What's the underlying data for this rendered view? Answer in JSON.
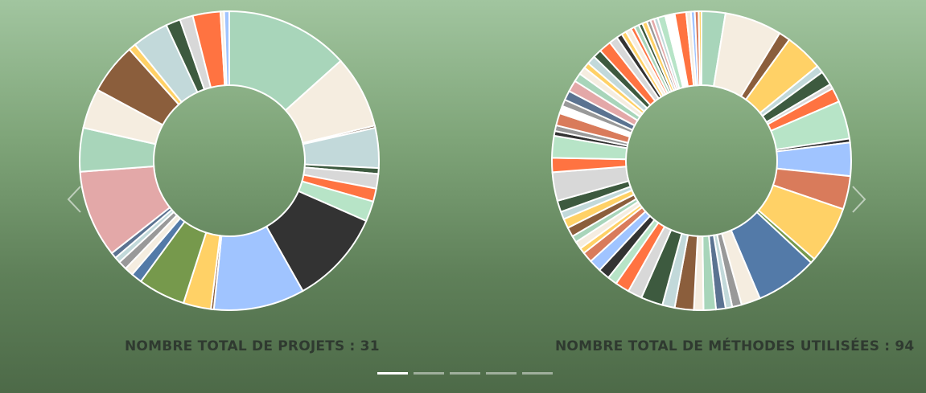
{
  "carousel": {
    "slides": [
      {
        "caption": "NOMBRE TOTAL DE PROJETS : 31",
        "segments": [
          {
            "v": 17,
            "c": "#a8d5ba"
          },
          {
            "v": 10,
            "c": "#f5ede0"
          },
          {
            "v": 0.3,
            "c": "#5a3a20"
          },
          {
            "v": 5.5,
            "c": "#c2d9da"
          },
          {
            "v": 0.8,
            "c": "#3d5a3f"
          },
          {
            "v": 2,
            "c": "#d8d8d8"
          },
          {
            "v": 1.8,
            "c": "#ff7341"
          },
          {
            "v": 2.8,
            "c": "#b7e4c7"
          },
          {
            "v": 13,
            "c": "#333333"
          },
          {
            "v": 12.5,
            "c": "#a0c4ff"
          },
          {
            "v": 0.4,
            "c": "#8b5e3c"
          },
          {
            "v": 3.8,
            "c": "#ffd166"
          },
          {
            "v": 6.5,
            "c": "#76994c"
          },
          {
            "v": 1.5,
            "c": "#537aa8"
          },
          {
            "v": 1.2,
            "c": "#f5ede0"
          },
          {
            "v": 1.2,
            "c": "#999999"
          },
          {
            "v": 0.8,
            "c": "#c2d9da"
          },
          {
            "v": 0.8,
            "c": "#5b7391"
          },
          {
            "v": 12,
            "c": "#e3a8a8"
          },
          {
            "v": 6,
            "c": "#a8d5ba"
          },
          {
            "v": 5.5,
            "c": "#f5ede0"
          },
          {
            "v": 7,
            "c": "#8b5e3c"
          },
          {
            "v": 1,
            "c": "#ffd166"
          },
          {
            "v": 5,
            "c": "#c2d9da"
          },
          {
            "v": 2,
            "c": "#3d5a3f"
          },
          {
            "v": 1.8,
            "c": "#d8d8d8"
          },
          {
            "v": 3.8,
            "c": "#ff7341"
          },
          {
            "v": 0.5,
            "c": "#f5ede0"
          },
          {
            "v": 0.7,
            "c": "#a0c4ff"
          }
        ]
      },
      {
        "caption": "NOMBRE TOTAL DE MÉTHODES UTILISÉES : 94",
        "segments": [
          {
            "v": 2.5,
            "c": "#a8d5ba"
          },
          {
            "v": 6,
            "c": "#f5ede0"
          },
          {
            "v": 1.2,
            "c": "#8b5e3c"
          },
          {
            "v": 4,
            "c": "#ffd166"
          },
          {
            "v": 0.8,
            "c": "#c2d9da"
          },
          {
            "v": 1.5,
            "c": "#3d5a3f"
          },
          {
            "v": 0.5,
            "c": "#d8d8d8"
          },
          {
            "v": 1.5,
            "c": "#ff7341"
          },
          {
            "v": 4,
            "c": "#b7e4c7"
          },
          {
            "v": 0.4,
            "c": "#333333"
          },
          {
            "v": 3.5,
            "c": "#a0c4ff"
          },
          {
            "v": 3.5,
            "c": "#d97b5b"
          },
          {
            "v": 6,
            "c": "#ffd166"
          },
          {
            "v": 0.5,
            "c": "#76994c"
          },
          {
            "v": 6.5,
            "c": "#537aa8"
          },
          {
            "v": 2,
            "c": "#f5ede0"
          },
          {
            "v": 1,
            "c": "#999999"
          },
          {
            "v": 0.7,
            "c": "#c2d9da"
          },
          {
            "v": 1,
            "c": "#5b7391"
          },
          {
            "v": 1.3,
            "c": "#a8d5ba"
          },
          {
            "v": 1,
            "c": "#f5ede0"
          },
          {
            "v": 2,
            "c": "#8b5e3c"
          },
          {
            "v": 1.3,
            "c": "#c2d9da"
          },
          {
            "v": 2.3,
            "c": "#3d5a3f"
          },
          {
            "v": 1.5,
            "c": "#d8d8d8"
          },
          {
            "v": 1.5,
            "c": "#ff7341"
          },
          {
            "v": 1,
            "c": "#b7e4c7"
          },
          {
            "v": 1.2,
            "c": "#333333"
          },
          {
            "v": 1.3,
            "c": "#a0c4ff"
          },
          {
            "v": 1.1,
            "c": "#d97b5b"
          },
          {
            "v": 0.6,
            "c": "#ffd166"
          },
          {
            "v": 0.8,
            "c": "#f5ede0"
          },
          {
            "v": 0.7,
            "c": "#a8d5ba"
          },
          {
            "v": 1,
            "c": "#8b5e3c"
          },
          {
            "v": 1,
            "c": "#ffd166"
          },
          {
            "v": 0.8,
            "c": "#c2d9da"
          },
          {
            "v": 1.2,
            "c": "#3d5a3f"
          },
          {
            "v": 3,
            "c": "#d8d8d8"
          },
          {
            "v": 1.5,
            "c": "#ff7341"
          },
          {
            "v": 2.3,
            "c": "#b7e4c7"
          },
          {
            "v": 0.5,
            "c": "#333333"
          },
          {
            "v": 0.6,
            "c": "#999999"
          },
          {
            "v": 1.3,
            "c": "#d97b5b"
          },
          {
            "v": 0.8,
            "c": "#ffffff"
          },
          {
            "v": 0.7,
            "c": "#999999"
          },
          {
            "v": 1,
            "c": "#5b7391"
          },
          {
            "v": 1.2,
            "c": "#e3a8a8"
          },
          {
            "v": 0.9,
            "c": "#a8d5ba"
          },
          {
            "v": 0.8,
            "c": "#f5ede0"
          },
          {
            "v": 0.6,
            "c": "#ffd166"
          },
          {
            "v": 0.9,
            "c": "#c2d9da"
          },
          {
            "v": 0.9,
            "c": "#3d5a3f"
          },
          {
            "v": 1.3,
            "c": "#ff7341"
          },
          {
            "v": 0.9,
            "c": "#d8d8d8"
          },
          {
            "v": 0.6,
            "c": "#333333"
          },
          {
            "v": 0.5,
            "c": "#ffd166"
          },
          {
            "v": 0.6,
            "c": "#f5ede0"
          },
          {
            "v": 0.4,
            "c": "#ff7341"
          },
          {
            "v": 0.5,
            "c": "#a8d5ba"
          },
          {
            "v": 0.4,
            "c": "#3d5a3f"
          },
          {
            "v": 0.5,
            "c": "#ffd166"
          },
          {
            "v": 0.4,
            "c": "#999999"
          },
          {
            "v": 0.4,
            "c": "#e3a8a8"
          },
          {
            "v": 0.4,
            "c": "#c2d9da"
          },
          {
            "v": 0.8,
            "c": "#b7e4c7"
          },
          {
            "v": 1,
            "c": "#ffffff"
          },
          {
            "v": 1.2,
            "c": "#ff7341"
          },
          {
            "v": 0.5,
            "c": "#f5ede0"
          },
          {
            "v": 0.4,
            "c": "#a0c4ff"
          },
          {
            "v": 0.4,
            "c": "#d97b5b"
          },
          {
            "v": 0.3,
            "c": "#ffd166"
          }
        ]
      },
      {
        "caption": "",
        "segments": []
      },
      {
        "caption": "",
        "segments": []
      },
      {
        "caption": "",
        "segments": []
      }
    ]
  },
  "arrows": {
    "prev_icon": "chevron-left-icon",
    "next_icon": "chevron-right-icon"
  },
  "pagination": {
    "count": 5,
    "active": 0
  },
  "colors": {
    "caption": "#2f3a30",
    "stroke": "#ffffff"
  }
}
